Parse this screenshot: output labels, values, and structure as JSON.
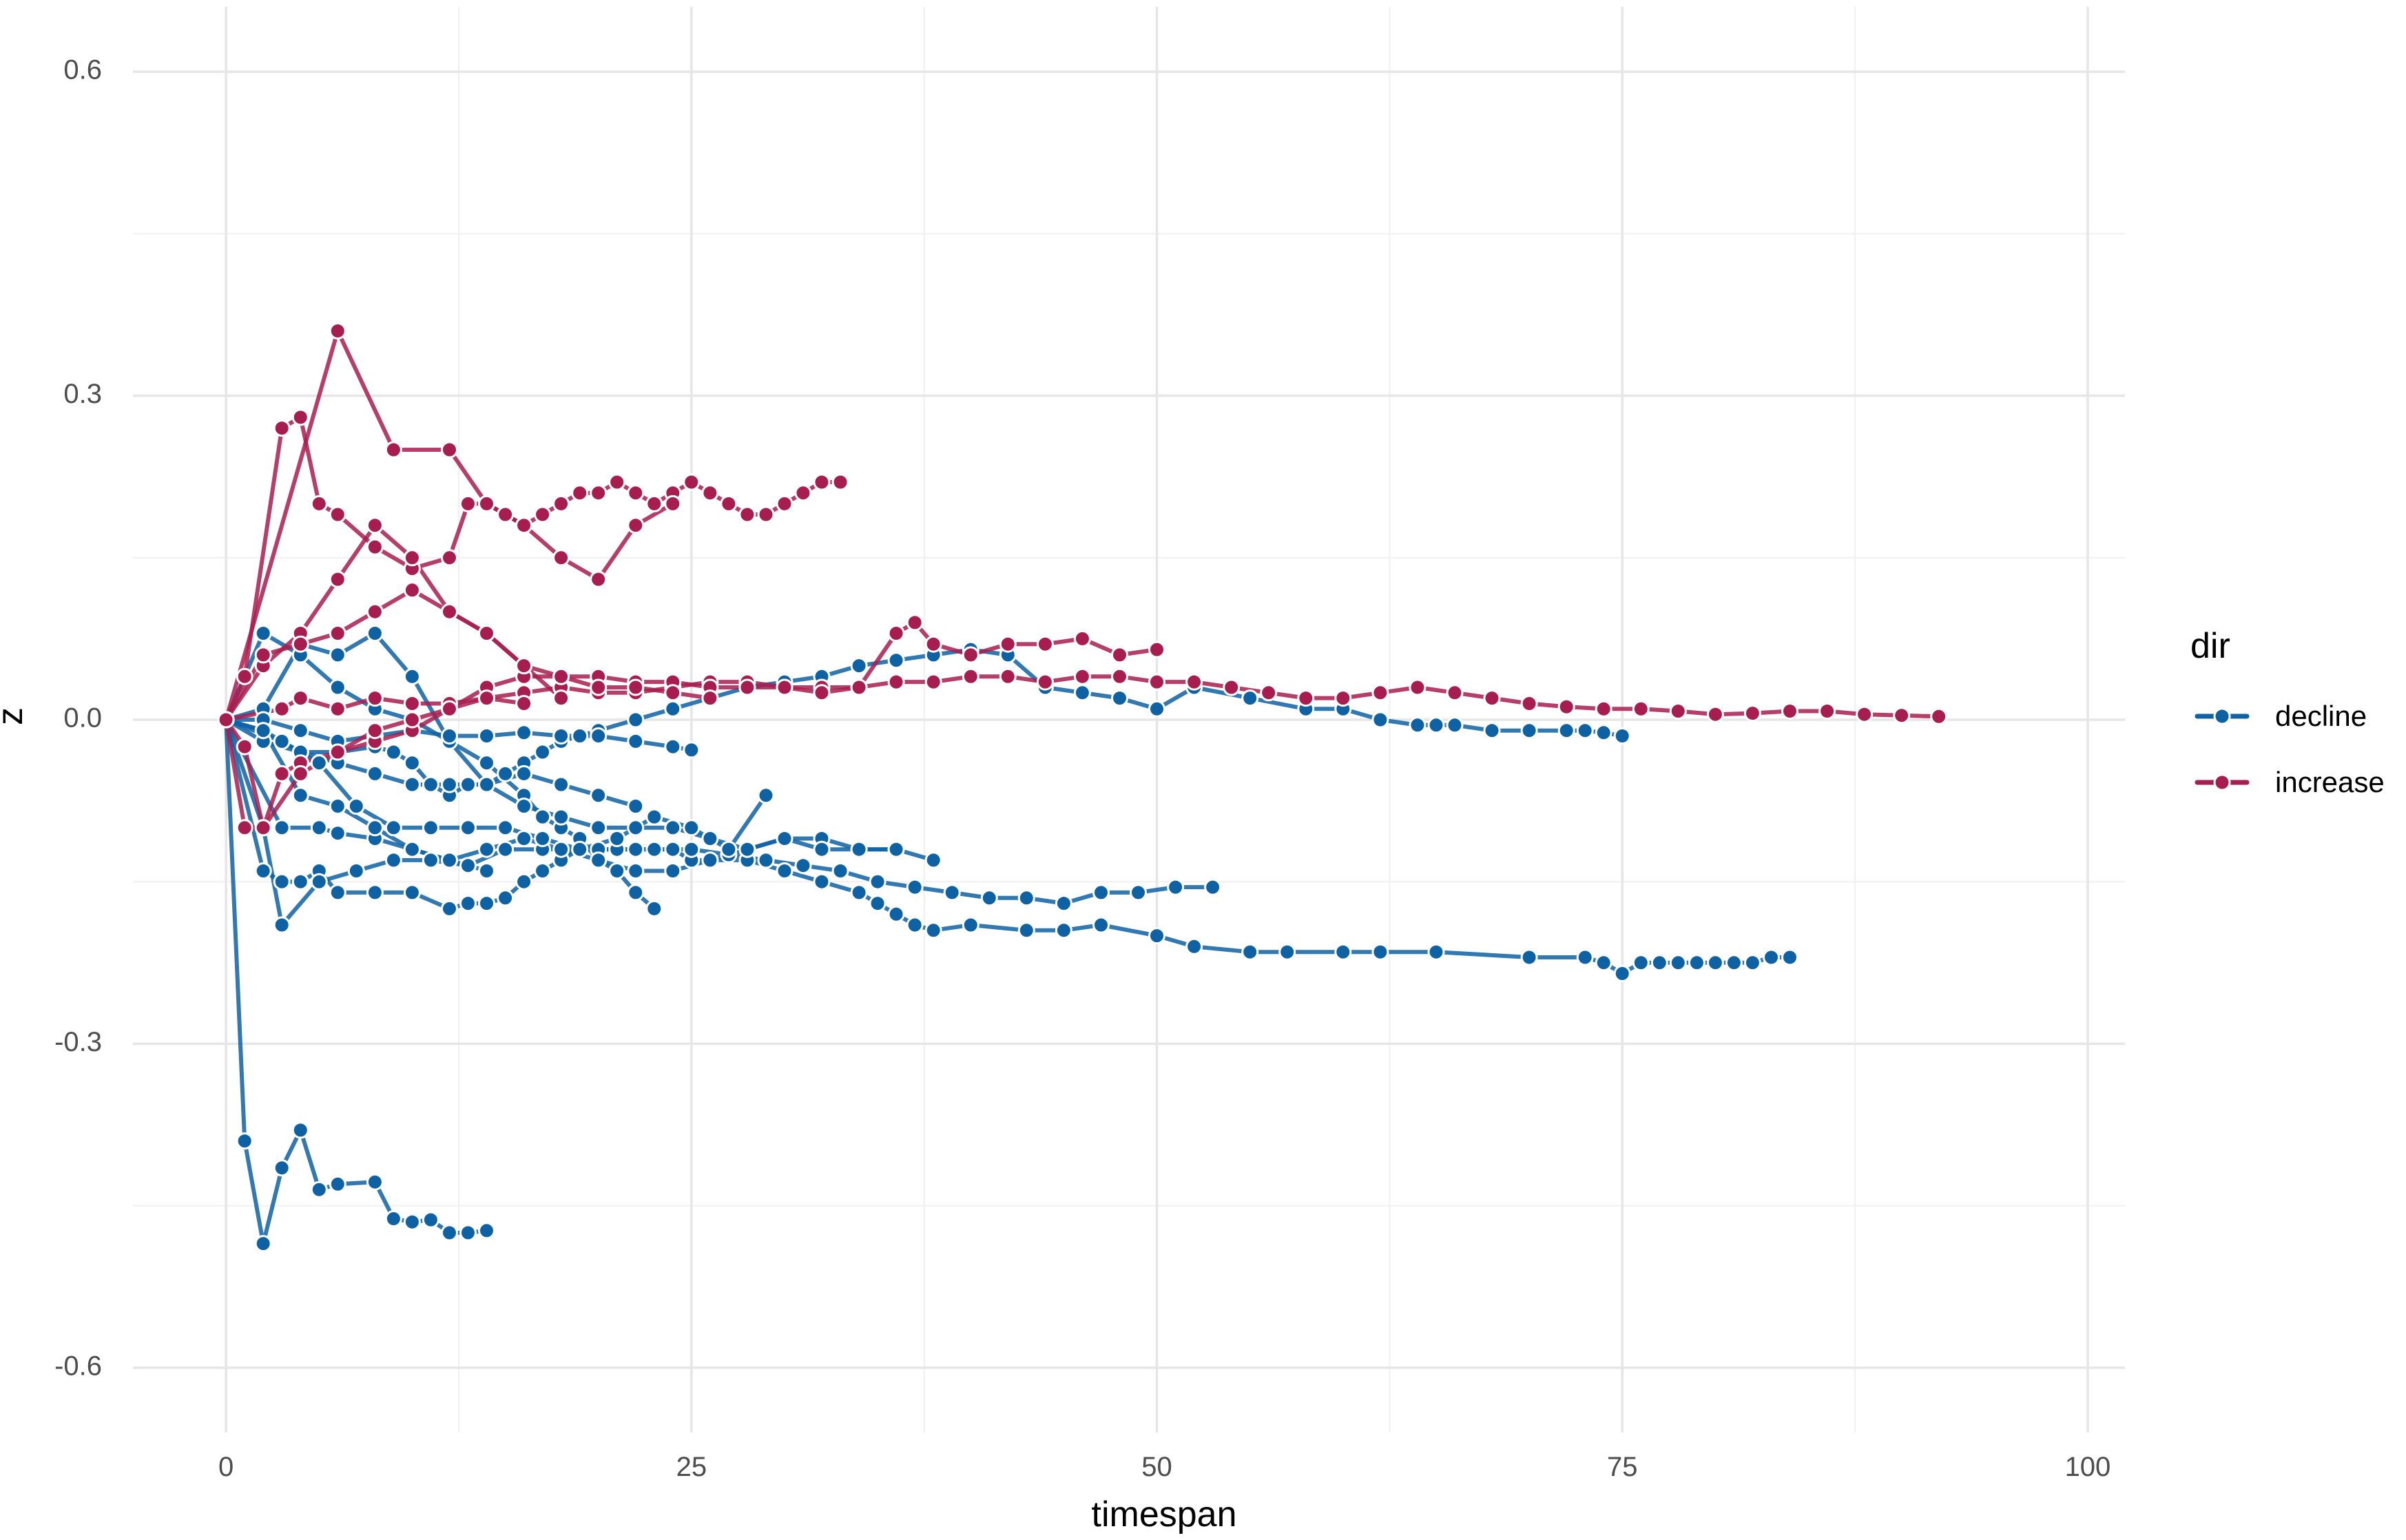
{
  "chart_data": {
    "type": "line",
    "xlabel": "timespan",
    "ylabel": "z",
    "xlim": [
      -5,
      102
    ],
    "ylim": [
      -0.66,
      0.66
    ],
    "x_ticks": [
      "0",
      "25",
      "50",
      "75",
      "100"
    ],
    "x_tick_values": [
      0,
      25,
      50,
      75,
      100
    ],
    "y_ticks": [
      "0.6",
      "0.3",
      "0.0",
      "-0.3",
      "-0.6"
    ],
    "y_tick_values": [
      0.6,
      0.3,
      0.0,
      -0.3,
      -0.6
    ],
    "grid": true,
    "legend": {
      "title": "dir",
      "position": "right",
      "entries": [
        {
          "label": "decline",
          "color": "#0e62a4"
        },
        {
          "label": "increase",
          "color": "#a81d4f"
        }
      ]
    },
    "series": [
      {
        "group": "decline",
        "color": "#0e62a4",
        "x": [
          0,
          1,
          2,
          3,
          4,
          5,
          6,
          8,
          9,
          10,
          11,
          12,
          13,
          14
        ],
        "y": [
          0,
          -0.39,
          -0.485,
          -0.415,
          -0.38,
          -0.435,
          -0.43,
          -0.428,
          -0.462,
          -0.465,
          -0.463,
          -0.475,
          -0.475,
          -0.473
        ]
      },
      {
        "group": "decline",
        "color": "#0e62a4",
        "x": [
          0,
          2,
          3,
          4,
          5,
          6,
          8,
          10,
          12,
          13,
          14,
          15,
          16,
          17,
          18,
          19,
          20,
          22,
          24,
          25,
          26,
          28,
          30,
          32,
          34,
          35,
          36,
          37,
          38,
          40,
          43,
          45,
          47,
          50,
          52,
          55,
          57,
          60,
          62,
          65,
          70,
          73,
          74,
          75,
          76,
          77,
          78,
          79,
          80,
          81,
          82,
          83,
          84
        ],
        "y": [
          0,
          -0.14,
          -0.15,
          -0.15,
          -0.14,
          -0.16,
          -0.16,
          -0.16,
          -0.175,
          -0.17,
          -0.17,
          -0.165,
          -0.15,
          -0.14,
          -0.13,
          -0.12,
          -0.12,
          -0.12,
          -0.12,
          -0.13,
          -0.13,
          -0.13,
          -0.14,
          -0.15,
          -0.16,
          -0.17,
          -0.18,
          -0.19,
          -0.195,
          -0.19,
          -0.195,
          -0.195,
          -0.19,
          -0.2,
          -0.21,
          -0.215,
          -0.215,
          -0.215,
          -0.215,
          -0.215,
          -0.22,
          -0.22,
          -0.225,
          -0.235,
          -0.225,
          -0.225,
          -0.225,
          -0.225,
          -0.225,
          -0.225,
          -0.225,
          -0.22,
          -0.22
        ]
      },
      {
        "group": "decline",
        "color": "#0e62a4",
        "x": [
          0,
          2,
          3,
          5,
          7,
          9,
          11,
          13,
          15,
          17,
          19,
          21,
          23,
          25,
          27,
          29,
          31,
          33,
          35,
          37,
          39,
          41,
          43,
          45,
          47,
          49,
          51,
          53
        ],
        "y": [
          0,
          -0.1,
          -0.19,
          -0.15,
          -0.14,
          -0.13,
          -0.13,
          -0.135,
          -0.12,
          -0.12,
          -0.12,
          -0.12,
          -0.12,
          -0.12,
          -0.125,
          -0.13,
          -0.135,
          -0.14,
          -0.15,
          -0.155,
          -0.16,
          -0.165,
          -0.165,
          -0.17,
          -0.16,
          -0.16,
          -0.155,
          -0.155
        ]
      },
      {
        "group": "decline",
        "color": "#0e62a4",
        "x": [
          0,
          3,
          5,
          6,
          8,
          10,
          12,
          14,
          16,
          18,
          20,
          22,
          24,
          26,
          28,
          30,
          32,
          34,
          36,
          38
        ],
        "y": [
          0,
          -0.1,
          -0.1,
          -0.105,
          -0.11,
          -0.12,
          -0.13,
          -0.12,
          -0.11,
          -0.12,
          -0.13,
          -0.14,
          -0.14,
          -0.13,
          -0.12,
          -0.11,
          -0.11,
          -0.12,
          -0.12,
          -0.13
        ]
      },
      {
        "group": "decline",
        "color": "#0e62a4",
        "x": [
          0,
          2,
          4,
          6,
          8,
          10,
          12,
          14,
          16,
          17,
          18,
          19,
          20,
          21,
          22,
          23
        ],
        "y": [
          0,
          0.08,
          0.06,
          0.03,
          0.01,
          0,
          -0.02,
          -0.04,
          -0.07,
          -0.09,
          -0.1,
          -0.11,
          -0.13,
          -0.14,
          -0.16,
          -0.175
        ]
      },
      {
        "group": "decline",
        "color": "#0e62a4",
        "x": [
          0,
          2,
          4,
          6,
          8,
          9,
          10,
          11,
          12,
          13,
          14,
          15,
          16,
          17,
          18,
          19,
          20,
          22,
          24,
          26,
          28,
          30,
          32,
          34,
          36,
          38,
          40,
          42,
          44,
          46,
          48,
          50,
          52,
          55,
          58,
          60,
          62,
          64,
          65,
          66,
          68,
          70,
          72,
          73,
          74,
          75
        ],
        "y": [
          0,
          -0.02,
          -0.03,
          -0.03,
          -0.025,
          -0.03,
          -0.04,
          -0.06,
          -0.07,
          -0.06,
          -0.06,
          -0.05,
          -0.04,
          -0.03,
          -0.02,
          -0.015,
          -0.01,
          0,
          0.01,
          0.02,
          0.03,
          0.035,
          0.04,
          0.05,
          0.055,
          0.06,
          0.065,
          0.06,
          0.03,
          0.025,
          0.02,
          0.01,
          0.03,
          0.02,
          0.01,
          0.01,
          0,
          -0.005,
          -0.005,
          -0.005,
          -0.01,
          -0.01,
          -0.01,
          -0.01,
          -0.012,
          -0.015
        ]
      },
      {
        "group": "decline",
        "color": "#0e62a4",
        "x": [
          0,
          3,
          5,
          7,
          9,
          11,
          13,
          15,
          17,
          19,
          21,
          23,
          25,
          27,
          29
        ],
        "y": [
          0,
          -0.02,
          -0.04,
          -0.08,
          -0.1,
          -0.1,
          -0.1,
          -0.1,
          -0.11,
          -0.12,
          -0.11,
          -0.09,
          -0.1,
          -0.12,
          -0.07
        ]
      },
      {
        "group": "decline",
        "color": "#0e62a4",
        "x": [
          0,
          2,
          4,
          6,
          8,
          10,
          12,
          14,
          16,
          18,
          20,
          22,
          24,
          26,
          28,
          30,
          32,
          34,
          36
        ],
        "y": [
          0,
          0.01,
          0.07,
          0.06,
          0.08,
          0.04,
          -0.02,
          -0.06,
          -0.08,
          -0.09,
          -0.1,
          -0.1,
          -0.1,
          -0.11,
          -0.12,
          -0.11,
          -0.12,
          -0.12,
          -0.12
        ]
      },
      {
        "group": "decline",
        "color": "#0e62a4",
        "x": [
          0,
          2,
          4,
          6,
          8,
          10,
          12,
          14,
          16,
          18,
          20,
          22,
          24,
          25
        ],
        "y": [
          0,
          0,
          -0.01,
          -0.02,
          -0.015,
          -0.01,
          -0.015,
          -0.015,
          -0.012,
          -0.015,
          -0.015,
          -0.02,
          -0.025,
          -0.028
        ]
      },
      {
        "group": "decline",
        "color": "#0e62a4",
        "x": [
          0,
          2,
          4,
          6,
          8,
          10,
          12,
          14,
          16,
          18,
          20,
          22
        ],
        "y": [
          0,
          -0.01,
          -0.03,
          -0.04,
          -0.05,
          -0.06,
          -0.06,
          -0.06,
          -0.05,
          -0.06,
          -0.07,
          -0.08
        ]
      },
      {
        "group": "decline",
        "color": "#0e62a4",
        "x": [
          0,
          2,
          4,
          6,
          8,
          10,
          12,
          14
        ],
        "y": [
          0,
          -0.01,
          -0.07,
          -0.08,
          -0.1,
          -0.12,
          -0.13,
          -0.14
        ]
      },
      {
        "group": "increase",
        "color": "#a81d4f",
        "x": [
          0,
          3,
          4,
          6,
          8,
          10,
          12,
          14,
          16,
          18,
          20,
          22,
          24,
          26,
          28,
          30,
          32,
          34,
          36,
          38,
          40,
          42,
          44,
          46,
          48,
          50,
          52,
          54,
          56,
          58,
          60,
          62,
          64,
          66,
          68,
          70,
          72,
          74,
          76,
          78,
          80,
          82,
          84,
          86,
          88,
          90,
          92
        ],
        "y": [
          0,
          0.01,
          0.02,
          0.01,
          0.02,
          0.015,
          0.015,
          0.02,
          0.025,
          0.03,
          0.025,
          0.025,
          0.03,
          0.035,
          0.035,
          0.03,
          0.03,
          0.03,
          0.035,
          0.035,
          0.04,
          0.04,
          0.035,
          0.04,
          0.04,
          0.035,
          0.035,
          0.03,
          0.025,
          0.02,
          0.02,
          0.025,
          0.03,
          0.025,
          0.02,
          0.015,
          0.012,
          0.01,
          0.01,
          0.008,
          0.005,
          0.006,
          0.008,
          0.008,
          0.005,
          0.004,
          0.003
        ]
      },
      {
        "group": "increase",
        "color": "#a81d4f",
        "x": [
          0,
          1,
          2,
          3,
          4,
          6,
          8,
          10,
          12,
          14,
          16,
          18,
          20,
          22,
          24,
          26,
          28,
          30,
          32,
          34,
          36,
          37,
          38,
          40,
          42,
          44,
          46,
          48,
          50
        ],
        "y": [
          0,
          -0.025,
          -0.1,
          -0.05,
          -0.04,
          -0.03,
          -0.02,
          -0.01,
          0.01,
          0.03,
          0.04,
          0.04,
          0.04,
          0.035,
          0.035,
          0.03,
          0.03,
          0.03,
          0.025,
          0.03,
          0.08,
          0.09,
          0.07,
          0.06,
          0.07,
          0.07,
          0.075,
          0.06,
          0.065
        ]
      },
      {
        "group": "increase",
        "color": "#a81d4f",
        "x": [
          0,
          1,
          3,
          4,
          5,
          6,
          8,
          10,
          12,
          13,
          14,
          15,
          16,
          17,
          18,
          19,
          20,
          21,
          22,
          23,
          24,
          25,
          26,
          27,
          28,
          29,
          30,
          31,
          32,
          33
        ],
        "y": [
          0,
          0.04,
          0.27,
          0.28,
          0.2,
          0.19,
          0.16,
          0.14,
          0.15,
          0.2,
          0.2,
          0.19,
          0.18,
          0.19,
          0.2,
          0.21,
          0.21,
          0.22,
          0.21,
          0.2,
          0.21,
          0.22,
          0.21,
          0.2,
          0.19,
          0.19,
          0.2,
          0.21,
          0.22,
          0.22
        ]
      },
      {
        "group": "increase",
        "color": "#a81d4f",
        "x": [
          0,
          6,
          9,
          12,
          14,
          16,
          18,
          20,
          22,
          24
        ],
        "y": [
          0,
          0.36,
          0.25,
          0.25,
          0.2,
          0.18,
          0.15,
          0.13,
          0.18,
          0.2
        ]
      },
      {
        "group": "increase",
        "color": "#a81d4f",
        "x": [
          0,
          2,
          4,
          6,
          8,
          10,
          12,
          14,
          16,
          18,
          20,
          22,
          24,
          26
        ],
        "y": [
          0,
          0.05,
          0.08,
          0.13,
          0.18,
          0.15,
          0.1,
          0.08,
          0.05,
          0.04,
          0.03,
          0.03,
          0.025,
          0.02
        ]
      },
      {
        "group": "increase",
        "color": "#a81d4f",
        "x": [
          0,
          2,
          4,
          6,
          8,
          10,
          12,
          14,
          16,
          18
        ],
        "y": [
          0,
          0.06,
          0.07,
          0.08,
          0.1,
          0.12,
          0.1,
          0.08,
          0.05,
          0.02
        ]
      },
      {
        "group": "increase",
        "color": "#a81d4f",
        "x": [
          0,
          1,
          2,
          4,
          6,
          8,
          10,
          12,
          14,
          16
        ],
        "y": [
          0,
          -0.1,
          -0.1,
          -0.05,
          -0.03,
          -0.01,
          0,
          0.01,
          0.02,
          0.015
        ]
      }
    ]
  }
}
